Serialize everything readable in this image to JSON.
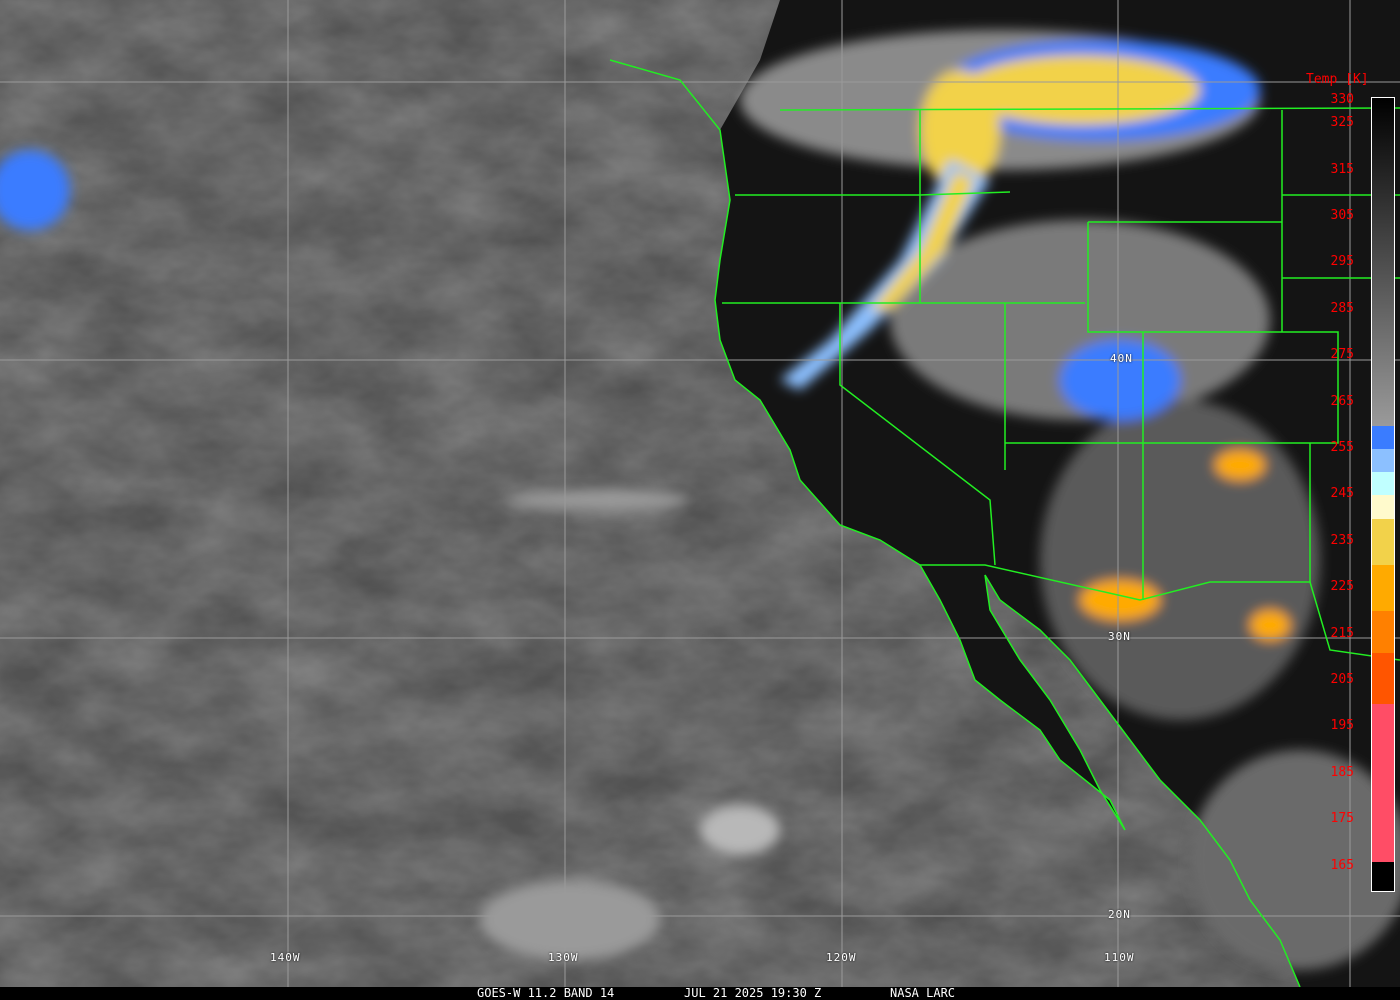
{
  "caption": {
    "product": "GOES-W 11.2 BAND 14",
    "datetime": "JUL 21 2025 19:30 Z",
    "source": "NASA LARC"
  },
  "colorbar": {
    "title": "Temp [K]",
    "ticks": [
      "330",
      "325",
      "315",
      "305",
      "295",
      "285",
      "275",
      "265",
      "255",
      "245",
      "235",
      "225",
      "215",
      "205",
      "195",
      "185",
      "175",
      "165"
    ],
    "range_K": [
      163,
      331
    ],
    "segments": [
      {
        "from": 260,
        "to": 331,
        "color": "gradient #9a9a9a to #000000"
      },
      {
        "from": 255,
        "to": 260,
        "color": "#3a7cff"
      },
      {
        "from": 250,
        "to": 255,
        "color": "#8cc0ff"
      },
      {
        "from": 245,
        "to": 250,
        "color": "#c0ffff"
      },
      {
        "from": 240,
        "to": 245,
        "color": "#fffacc"
      },
      {
        "from": 230,
        "to": 240,
        "color": "#f2d24a"
      },
      {
        "from": 220,
        "to": 230,
        "color": "#ffaa00"
      },
      {
        "from": 211,
        "to": 220,
        "color": "#ff8000"
      },
      {
        "from": 200,
        "to": 211,
        "color": "#ff5500"
      },
      {
        "from": 166,
        "to": 200,
        "color": "#ff4d66"
      },
      {
        "from": 163,
        "to": 166,
        "color": "#000000"
      }
    ]
  },
  "grid": {
    "longitudes": [
      "140W",
      "130W",
      "120W",
      "110W"
    ],
    "latitudes": [
      "40N",
      "30N",
      "20N"
    ]
  },
  "colors": {
    "borders": "#22ee22",
    "grid": "#9a9a9a",
    "labels_colorbar": "#ff0000"
  }
}
